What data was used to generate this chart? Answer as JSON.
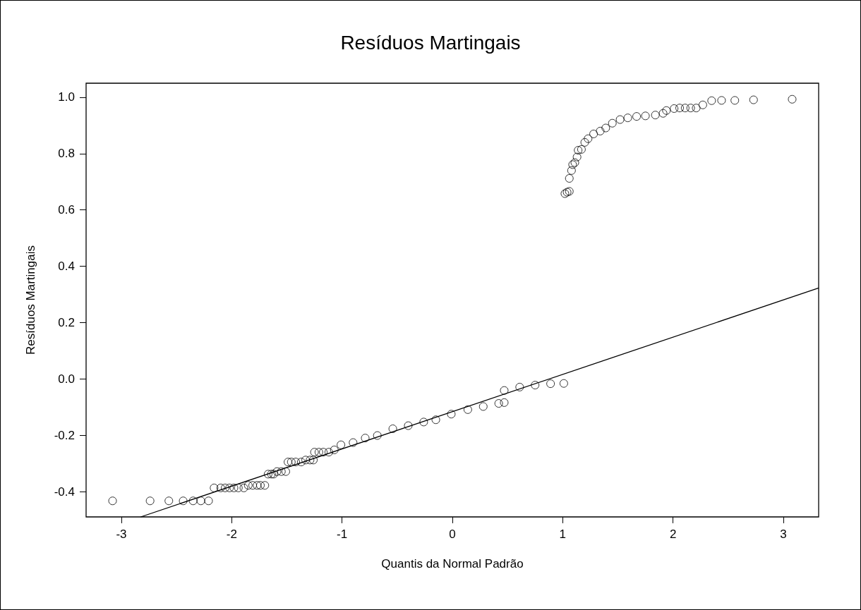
{
  "chart_data": {
    "type": "scatter",
    "title": "Resíduos Martingais",
    "xlabel": "Quantis da Normal Padrão",
    "ylabel": "Resíduos Martingais",
    "marker": "circle",
    "grid": false,
    "xlim": [
      -3.32,
      3.32
    ],
    "ylim": [
      -0.49,
      1.05
    ],
    "xticks": [
      -3,
      -2,
      -1,
      0,
      1,
      2,
      3
    ],
    "yticks": [
      -0.4,
      -0.2,
      {
        "value": 0,
        "label": "0.0"
      },
      0.2,
      0.4,
      0.6,
      0.8,
      {
        "value": 1,
        "label": "1.0"
      }
    ],
    "series": [
      {
        "color": "#000000",
        "x": [
          -3.08,
          -2.74,
          -2.57,
          -2.44,
          -2.35,
          -2.28,
          -2.21,
          -2.16,
          -2.1,
          -2.06,
          -2.02,
          -1.98,
          -1.94,
          -1.89,
          -1.85,
          -1.81,
          -1.77,
          -1.74,
          -1.7,
          -1.67,
          -1.64,
          -1.62,
          -1.59,
          -1.55,
          -1.51,
          -1.49,
          -1.46,
          -1.42,
          -1.37,
          -1.33,
          -1.29,
          -1.26,
          -1.25,
          -1.21,
          -1.17,
          -1.12,
          -1.07,
          -1.01,
          -0.9,
          -0.79,
          -0.68,
          -0.54,
          -0.4,
          -0.26,
          -0.15,
          -0.01,
          0.14,
          0.28,
          0.42,
          0.47,
          0.47,
          0.61,
          0.75,
          0.89,
          1.01,
          1.02,
          1.04,
          1.06,
          1.06,
          1.08,
          1.09,
          1.11,
          1.13,
          1.14,
          1.17,
          1.2,
          1.23,
          1.28,
          1.34,
          1.39,
          1.45,
          1.52,
          1.59,
          1.67,
          1.75,
          1.84,
          1.91,
          1.94,
          2.01,
          2.06,
          2.11,
          2.16,
          2.21,
          2.27,
          2.35,
          2.44,
          2.56,
          2.73,
          3.08
        ],
        "values": [
          -0.433,
          -0.433,
          -0.433,
          -0.433,
          -0.433,
          -0.433,
          -0.433,
          -0.387,
          -0.387,
          -0.387,
          -0.387,
          -0.387,
          -0.387,
          -0.387,
          -0.378,
          -0.378,
          -0.378,
          -0.378,
          -0.378,
          -0.338,
          -0.338,
          -0.338,
          -0.329,
          -0.329,
          -0.329,
          -0.295,
          -0.295,
          -0.295,
          -0.295,
          -0.288,
          -0.288,
          -0.288,
          -0.26,
          -0.26,
          -0.26,
          -0.26,
          -0.252,
          -0.234,
          -0.226,
          -0.21,
          -0.201,
          -0.177,
          -0.166,
          -0.153,
          -0.145,
          -0.125,
          -0.109,
          -0.098,
          -0.087,
          -0.084,
          -0.041,
          -0.029,
          -0.022,
          -0.017,
          -0.016,
          0.658,
          0.663,
          0.666,
          0.712,
          0.74,
          0.761,
          0.768,
          0.788,
          0.812,
          0.815,
          0.84,
          0.853,
          0.87,
          0.88,
          0.891,
          0.908,
          0.921,
          0.927,
          0.932,
          0.934,
          0.937,
          0.943,
          0.953,
          0.96,
          0.962,
          0.962,
          0.962,
          0.962,
          0.973,
          0.988,
          0.989,
          0.989,
          0.991,
          0.993
        ]
      },
      {
        "type": "line",
        "color": "#000000",
        "marker": "none",
        "x": [
          -2.825,
          3.32
        ],
        "values": [
          -0.49,
          0.323
        ]
      }
    ]
  }
}
